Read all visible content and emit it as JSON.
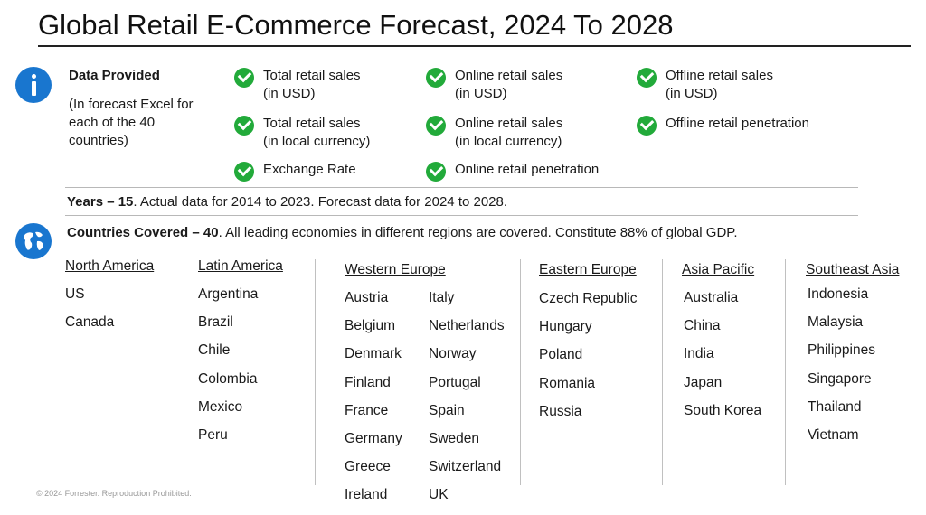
{
  "title": "Global Retail E-Commerce Forecast, 2024 To 2028",
  "data_provided": {
    "heading": "Data Provided",
    "subtext": "(In forecast Excel for each of the 40 countries)",
    "items": [
      "Total retail sales\n(in USD)",
      "Online retail sales\n(in USD)",
      "Offline retail sales\n(in USD)",
      "Total retail sales\n(in local currency)",
      "Online retail sales\n(in local currency)",
      "Offline retail penetration",
      "Exchange Rate",
      "Online retail penetration"
    ]
  },
  "years": {
    "bold": "Years – 15",
    "text": ". Actual data for 2014 to 2023. Forecast data for 2024 to 2028."
  },
  "countries": {
    "bold": "Countries Covered – 40",
    "text": ". All leading economies in different regions are covered. Constitute 88% of global GDP."
  },
  "regions": [
    {
      "name": "North America",
      "countries": [
        "US",
        "Canada"
      ]
    },
    {
      "name": "Latin America",
      "countries": [
        "Argentina",
        "Brazil",
        "Chile",
        "Colombia",
        "Mexico",
        "Peru"
      ]
    },
    {
      "name": "Western Europe",
      "countries": [
        "Austria",
        "Belgium",
        "Denmark",
        "Finland",
        "France",
        "Germany",
        "Greece",
        "Ireland"
      ],
      "countries_col2": [
        "Italy",
        "Netherlands",
        "Norway",
        "Portugal",
        "Spain",
        "Sweden",
        "Switzerland",
        "UK"
      ]
    },
    {
      "name": "Eastern Europe",
      "countries": [
        "Czech Republic",
        "Hungary",
        "Poland",
        "Romania",
        "Russia"
      ]
    },
    {
      "name": "Asia Pacific",
      "countries": [
        "Australia",
        "China",
        "India",
        "Japan",
        "South Korea"
      ]
    },
    {
      "name": "Southeast Asia",
      "countries": [
        "Indonesia",
        "Malaysia",
        "Philippines",
        "Singapore",
        "Thailand",
        "Vietnam"
      ]
    }
  ],
  "footer": "© 2024 Forrester. Reproduction Prohibited.",
  "colors": {
    "icon_blue": "#1976cf",
    "check_green": "#22aa3a"
  },
  "icons": {
    "info": "info-icon",
    "globe": "globe-icon",
    "check": "check-icon"
  }
}
